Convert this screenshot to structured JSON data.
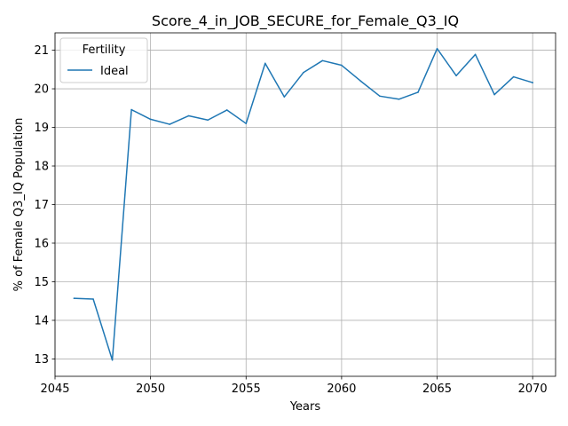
{
  "chart_data": {
    "type": "line",
    "title": "Score_4_in_JOB_SECURE_for_Female_Q3_IQ",
    "xlabel": "Years",
    "ylabel": "% of Female Q3_IQ Population",
    "xlim": [
      2045,
      2071.2
    ],
    "ylim": [
      12.55,
      21.45
    ],
    "xticks": [
      2045,
      2050,
      2055,
      2060,
      2065,
      2070
    ],
    "yticks": [
      13,
      14,
      15,
      16,
      17,
      18,
      19,
      20,
      21
    ],
    "grid": true,
    "legend": {
      "title": "Fertility",
      "placement": "top-left"
    },
    "series": [
      {
        "name": "Ideal",
        "color": "#1f77b4",
        "x": [
          2046,
          2047,
          2048,
          2049,
          2050,
          2051,
          2052,
          2053,
          2054,
          2055,
          2056,
          2057,
          2058,
          2059,
          2060,
          2061,
          2062,
          2063,
          2064,
          2065,
          2066,
          2067,
          2068,
          2069,
          2070
        ],
        "values": [
          14.57,
          14.55,
          12.97,
          19.46,
          19.21,
          19.08,
          19.3,
          19.19,
          19.45,
          19.1,
          20.66,
          19.79,
          20.42,
          20.73,
          20.61,
          20.2,
          19.81,
          19.73,
          19.91,
          21.04,
          20.34,
          20.89,
          19.85,
          20.31,
          20.16
        ]
      }
    ]
  }
}
